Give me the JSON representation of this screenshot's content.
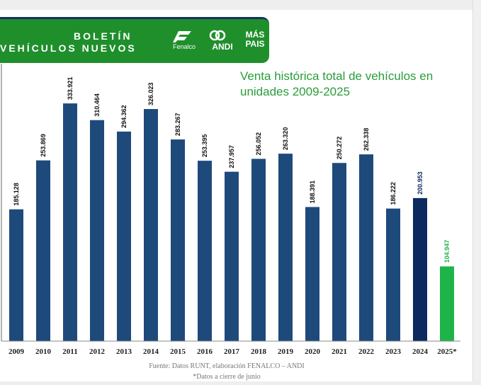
{
  "header": {
    "line1": "BOLETÍN",
    "line2": "VEHÍCULOS NUEVOS",
    "logo_fenalco": "Fenalco",
    "logo_andi": "ANDI",
    "logo_maspais_1": "MÁS",
    "logo_maspais_2": "PAIS"
  },
  "chart_data": {
    "type": "bar",
    "title": "Venta histórica total de vehículos en unidades 2009-2025",
    "categories": [
      "2009",
      "2010",
      "2011",
      "2012",
      "2013",
      "2014",
      "2015",
      "2016",
      "2017",
      "2018",
      "2019",
      "2020",
      "2021",
      "2022",
      "2023",
      "2024",
      "2025*"
    ],
    "values": [
      185128,
      253869,
      333921,
      310464,
      294362,
      326023,
      283267,
      253395,
      237957,
      256052,
      263320,
      188391,
      250272,
      262338,
      186222,
      200953,
      104947
    ],
    "value_labels": [
      "185.128",
      "253.869",
      "333.921",
      "310.464",
      "294.362",
      "326.023",
      "283.267",
      "253.395",
      "237.957",
      "256.052",
      "263.320",
      "188.391",
      "250.272",
      "262.338",
      "186.222",
      "200.953",
      "104.947"
    ],
    "colors": [
      "#1e4a7b",
      "#1e4a7b",
      "#1e4a7b",
      "#1e4a7b",
      "#1e4a7b",
      "#1e4a7b",
      "#1e4a7b",
      "#1e4a7b",
      "#1e4a7b",
      "#1e4a7b",
      "#1e4a7b",
      "#1e4a7b",
      "#1e4a7b",
      "#1e4a7b",
      "#1e4a7b",
      "#0d2a5e",
      "#1fb44a"
    ],
    "label_colors": [
      "#111111",
      "#111111",
      "#111111",
      "#111111",
      "#111111",
      "#111111",
      "#111111",
      "#111111",
      "#111111",
      "#111111",
      "#111111",
      "#111111",
      "#111111",
      "#111111",
      "#111111",
      "#0d2a5e",
      "#1fb44a"
    ],
    "ylim": [
      0,
      340000
    ],
    "xlabel": "",
    "ylabel": "",
    "grid": false
  },
  "footer": {
    "source": "Fuente: Datos RUNT, elaboración FENALCO – ANDI",
    "note": "*Datos a cierre de junio"
  }
}
